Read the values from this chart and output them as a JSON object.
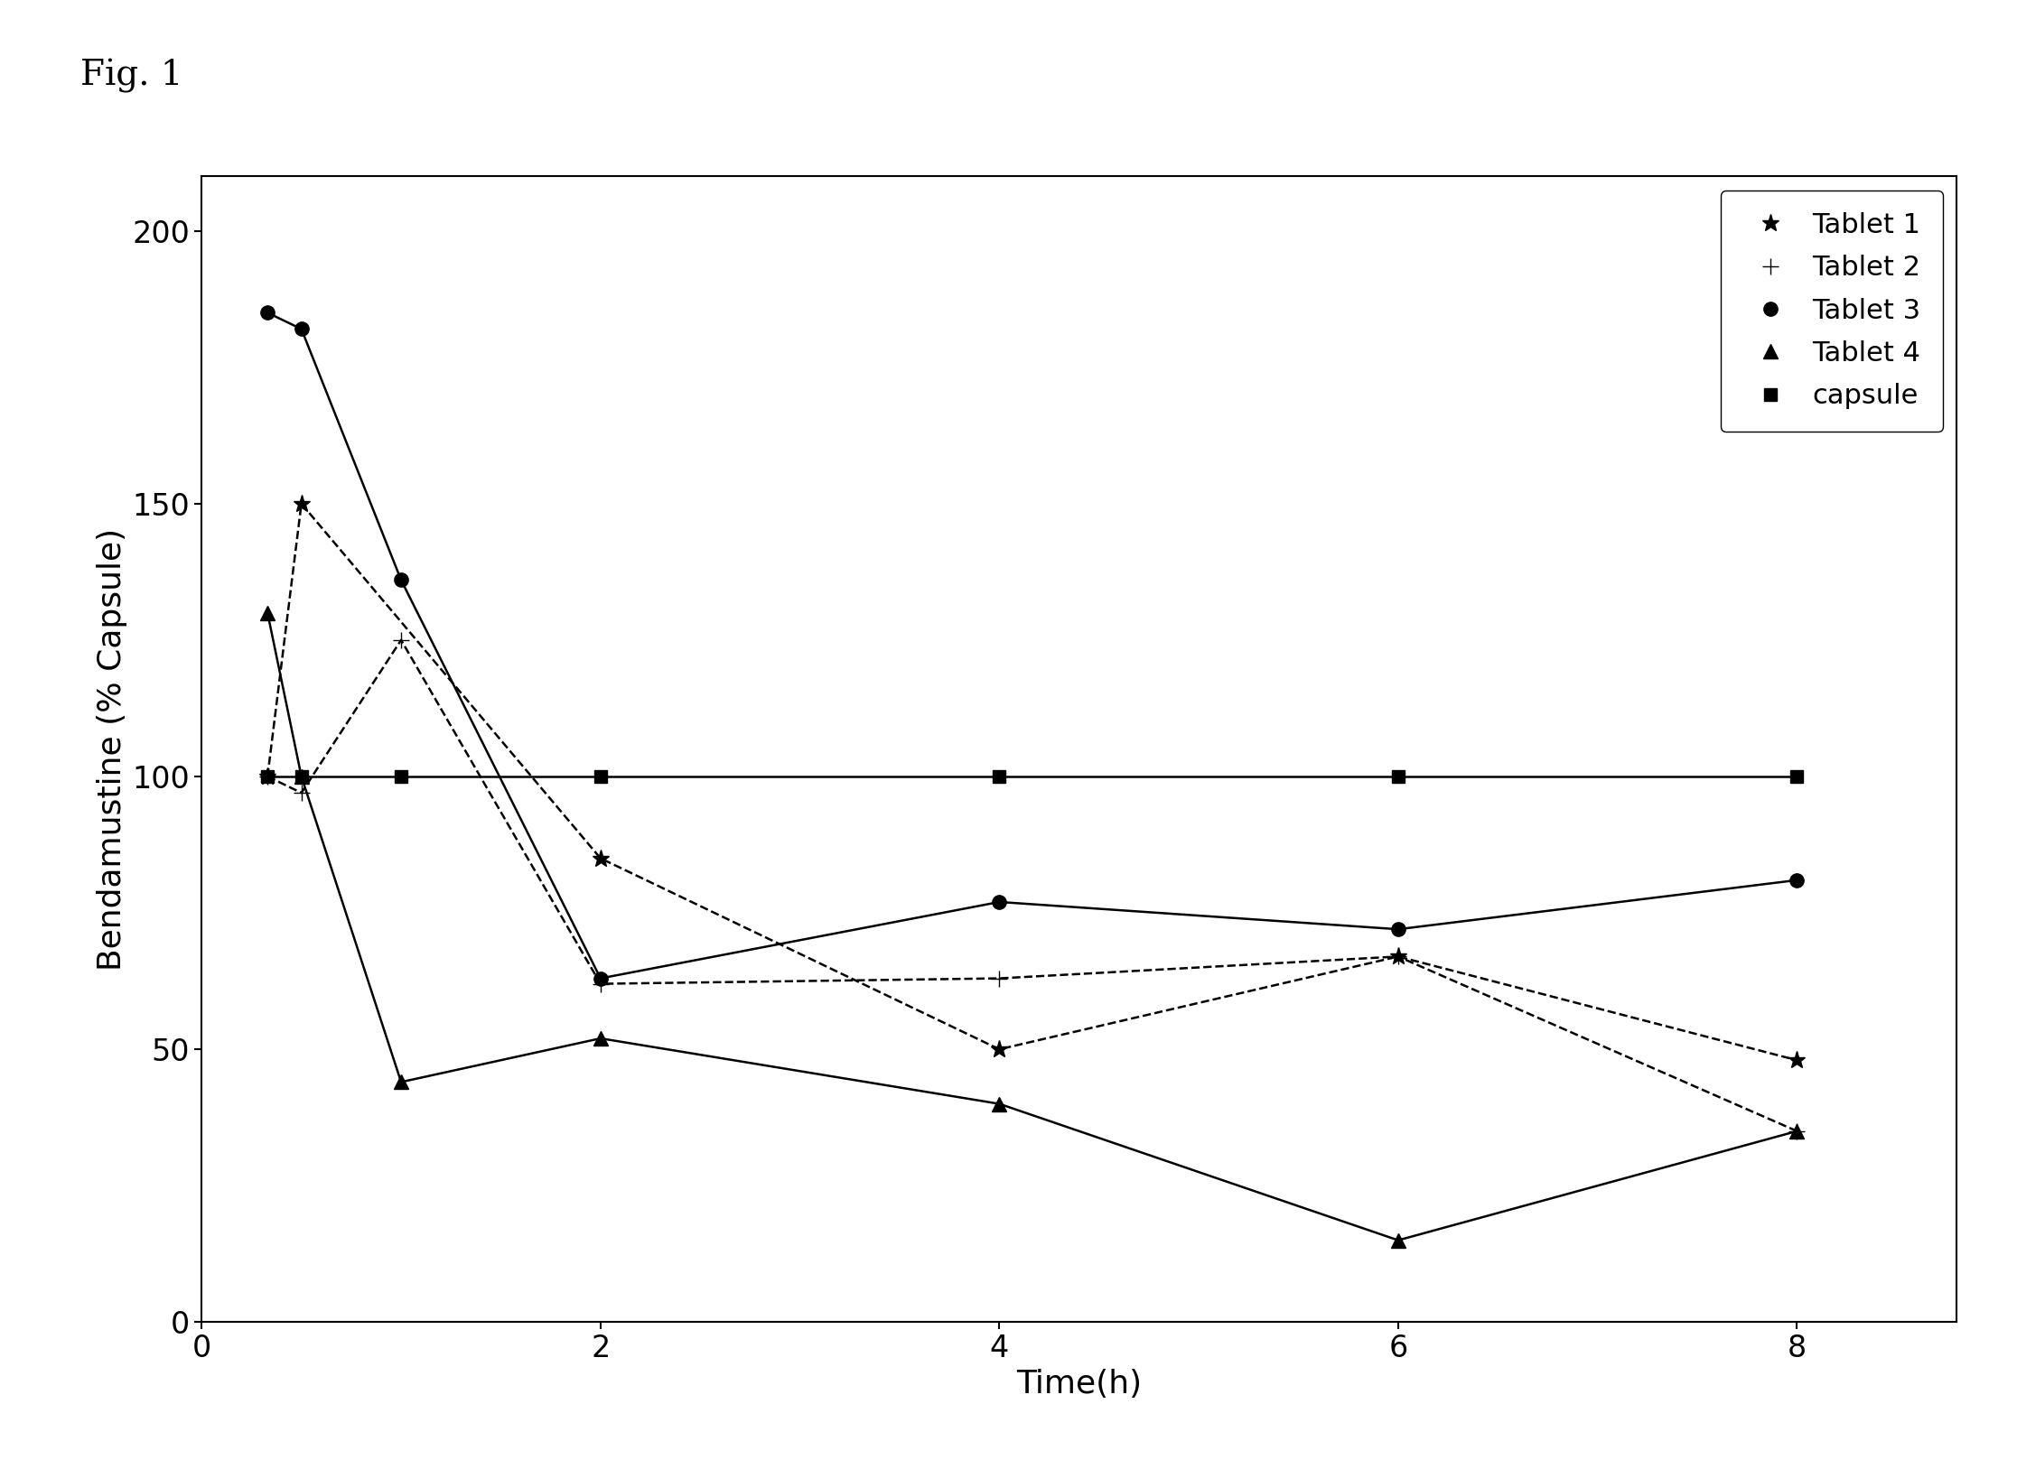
{
  "fig_label": "Fig. 1",
  "xlabel": "Time(h)",
  "ylabel": "Bendamustine (% Capsule)",
  "xlim": [
    0,
    8.8
  ],
  "ylim": [
    0,
    210
  ],
  "yticks": [
    0,
    50,
    100,
    150,
    200
  ],
  "xticks": [
    0,
    2,
    4,
    6,
    8
  ],
  "series": {
    "Tablet 1": {
      "x": [
        0.33,
        0.5,
        2,
        4,
        6,
        8
      ],
      "y": [
        100,
        150,
        85,
        50,
        67,
        48
      ],
      "marker": "*",
      "linestyle": "--",
      "markersize": 14
    },
    "Tablet 2": {
      "x": [
        0.33,
        0.5,
        1,
        2,
        4,
        6,
        8
      ],
      "y": [
        100,
        97,
        125,
        62,
        63,
        67,
        35
      ],
      "marker": "+",
      "linestyle": "--",
      "markersize": 13
    },
    "Tablet 3": {
      "x": [
        0.33,
        0.5,
        1,
        2,
        4,
        6,
        8
      ],
      "y": [
        185,
        182,
        136,
        63,
        77,
        72,
        81
      ],
      "marker": "o",
      "linestyle": "-",
      "markersize": 11
    },
    "Tablet 4": {
      "x": [
        0.33,
        0.5,
        1,
        2,
        4,
        6,
        8
      ],
      "y": [
        130,
        100,
        44,
        52,
        40,
        15,
        35
      ],
      "marker": "^",
      "linestyle": "-",
      "markersize": 11
    },
    "capsule": {
      "x": [
        0.33,
        0.5,
        1,
        2,
        4,
        6,
        8
      ],
      "y": [
        100,
        100,
        100,
        100,
        100,
        100,
        100
      ],
      "marker": "s",
      "linestyle": "-",
      "markersize": 10
    }
  },
  "line_color": "#000000",
  "background_color": "#ffffff",
  "fig_label_fontsize": 28,
  "axis_fontsize": 26,
  "tick_fontsize": 24,
  "legend_fontsize": 22,
  "linewidth": 1.8
}
